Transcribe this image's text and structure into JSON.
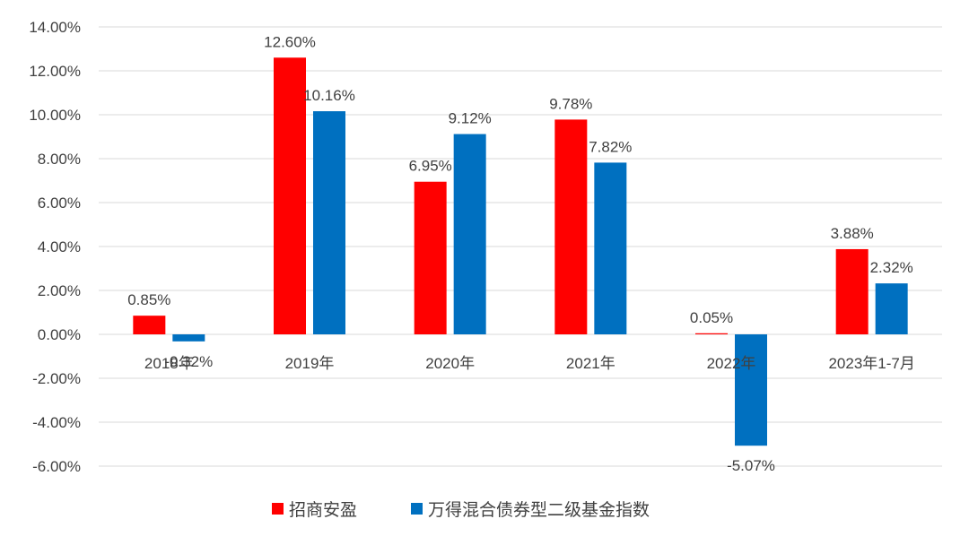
{
  "chart_data": {
    "type": "bar",
    "categories": [
      "2018年",
      "2019年",
      "2020年",
      "2021年",
      "2022年",
      "2023年1-7月"
    ],
    "series": [
      {
        "name": "招商安盈",
        "color": "#ff0000",
        "values": [
          0.85,
          12.6,
          6.95,
          9.78,
          0.05,
          3.88
        ],
        "labels": [
          "0.85%",
          "12.60%",
          "6.95%",
          "9.78%",
          "0.05%",
          "3.88%"
        ]
      },
      {
        "name": "万得混合债券型二级基金指数",
        "color": "#0070c0",
        "values": [
          -0.32,
          10.16,
          9.12,
          7.82,
          -5.07,
          2.32
        ],
        "labels": [
          "-0.32%",
          "10.16%",
          "9.12%",
          "7.82%",
          "-5.07%",
          "2.32%"
        ]
      }
    ],
    "y_ticks": [
      "14.00%",
      "12.00%",
      "10.00%",
      "8.00%",
      "6.00%",
      "4.00%",
      "2.00%",
      "0.00%",
      "-2.00%",
      "-4.00%",
      "-6.00%"
    ],
    "ylim": [
      -6,
      14
    ],
    "grid": true,
    "legend_position": "bottom"
  }
}
